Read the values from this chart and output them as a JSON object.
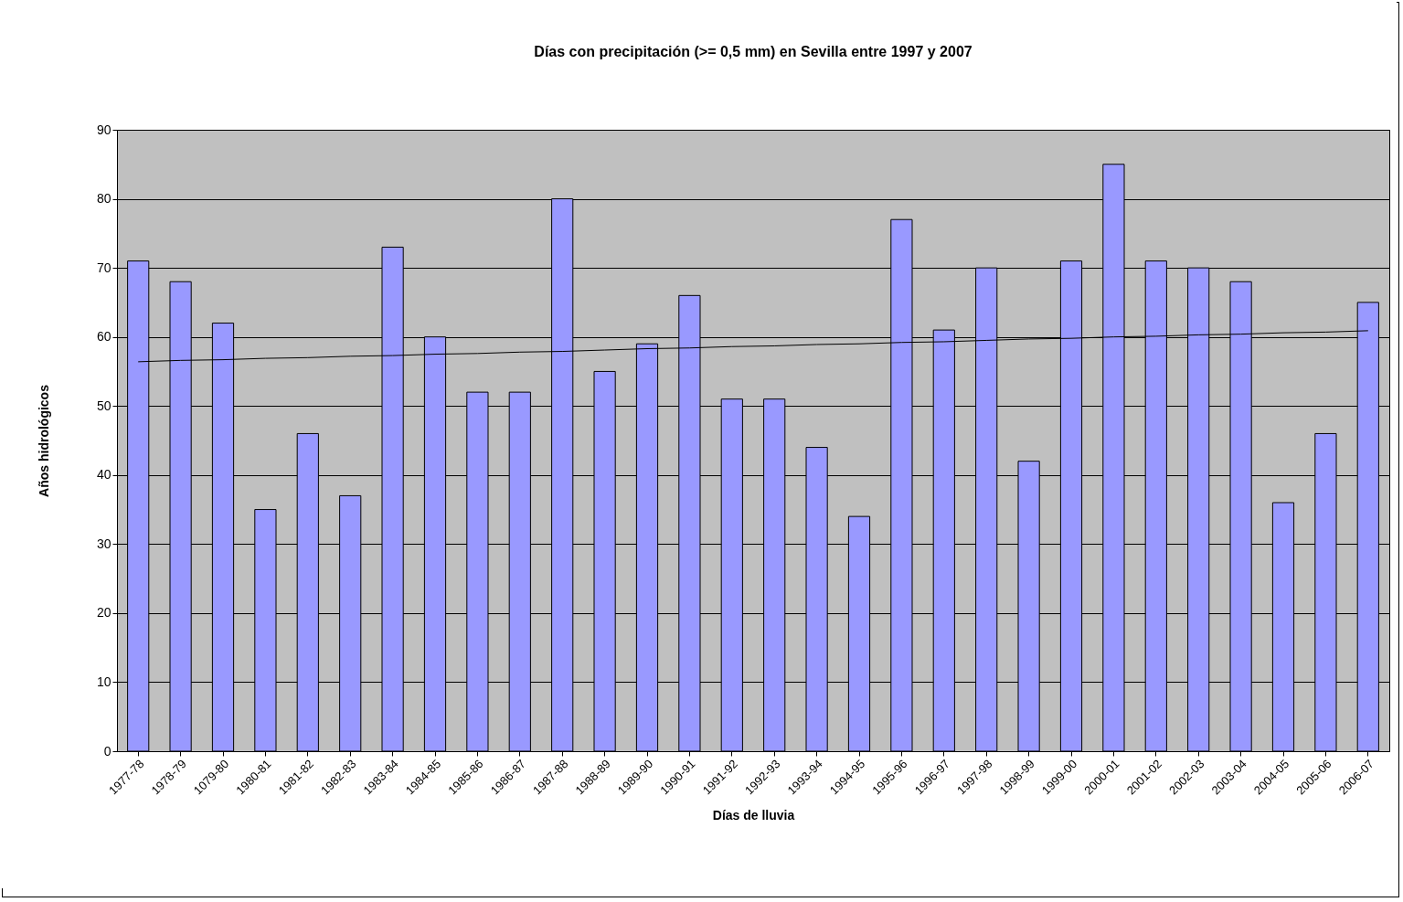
{
  "chart_data": {
    "type": "bar",
    "title": "Días con precipitación (>= 0,5 mm) en Sevilla entre 1997 y 2007",
    "xlabel": "Días de lluvia",
    "ylabel": "Años hidrológicos",
    "categories": [
      "1977-78",
      "1978-79",
      "1079-80",
      "1980-81",
      "1981-82",
      "1982-83",
      "1983-84",
      "1984-85",
      "1985-86",
      "1986-87",
      "1987-88",
      "1988-89",
      "1989-90",
      "1990-91",
      "1991-92",
      "1992-93",
      "1993-94",
      "1994-95",
      "1995-96",
      "1996-97",
      "1997-98",
      "1998-99",
      "1999-00",
      "2000-01",
      "2001-02",
      "2002-03",
      "2003-04",
      "2004-05",
      "2005-06",
      "2006-07"
    ],
    "series": [
      {
        "color": "#9999ff",
        "values": [
          71,
          68,
          62,
          35,
          46,
          37,
          73,
          60,
          52,
          52,
          80,
          55,
          59,
          66,
          51,
          51,
          44,
          34,
          77,
          61,
          70,
          42,
          71,
          85,
          71,
          70,
          68,
          36,
          46,
          65
        ]
      },
      {
        "type": "line",
        "color": "#000000",
        "values": [
          56.4,
          56.6,
          56.7,
          56.9,
          57.0,
          57.2,
          57.3,
          57.5,
          57.6,
          57.8,
          57.9,
          58.1,
          58.3,
          58.4,
          58.6,
          58.7,
          58.9,
          59.0,
          59.2,
          59.3,
          59.5,
          59.7,
          59.8,
          60.0,
          60.1,
          60.3,
          60.4,
          60.6,
          60.7,
          60.9
        ]
      }
    ],
    "ylim": [
      0,
      90
    ],
    "yticks": [
      0,
      10,
      20,
      30,
      40,
      50,
      60,
      70,
      80,
      90
    ],
    "grid": "y"
  }
}
